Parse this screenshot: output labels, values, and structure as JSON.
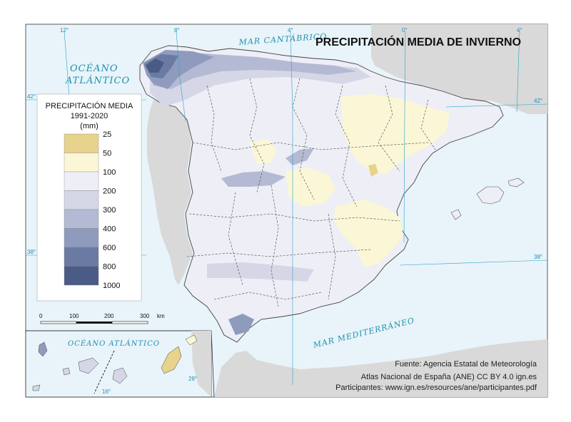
{
  "title": "PRECIPITACIÓN MEDIA DE INVIERNO",
  "seas": {
    "cantabrico": "MAR CANTÁBRICO",
    "atlantico_line1": "OCÉANO",
    "atlantico_line2": "ATLÁNTICO",
    "mediterraneo": "MAR MEDITERRÁNEO",
    "canarias_atlantico": "OCÉANO ATLÁNTICO"
  },
  "graticule": {
    "lon_12w": "12°",
    "lon_8w": "8°",
    "lon_4w": "4°",
    "lon_0": "0°",
    "lon_4e": "4°",
    "lat_42_left": "42°",
    "lat_42_right": "42°",
    "lat_38_left": "38°",
    "lat_38_right": "38°",
    "canarias_lat_28": "28°",
    "canarias_lon_16": "16°"
  },
  "legend": {
    "title_line1": "PRECIPITACIÓN MEDIA",
    "title_line2": "1991-2020",
    "unit": "(mm)",
    "classes": [
      {
        "label": "25",
        "color": "#e8d38c"
      },
      {
        "label": "50",
        "color": "#fbf7d6"
      },
      {
        "label": "100",
        "color": "#eeeef6"
      },
      {
        "label": "200",
        "color": "#d5d7e7"
      },
      {
        "label": "300",
        "color": "#b4bad3"
      },
      {
        "label": "400",
        "color": "#8f9bbd"
      },
      {
        "label": "600",
        "color": "#6a7aa3"
      },
      {
        "label": "800",
        "color": "#4a5b85"
      },
      {
        "label": "1000",
        "color": ""
      }
    ],
    "scale": {
      "t0": "0",
      "t1": "100",
      "t2": "200",
      "t3": "300",
      "unit": "km"
    }
  },
  "source": {
    "line1": "Fuente: Agencia Estatal de Meteorología",
    "line2": "Atlas Nacional de España (ANE) CC BY 4.0 ign.es",
    "line3": "Participantes: www.ign.es/resources/ane/participantes.pdf"
  },
  "colors": {
    "sea": "#e8f4fa",
    "graticule": "#2aa3c8",
    "foreign_land": "#d9d9d9",
    "iberia_base": "#eeeef6",
    "dry": "#fbf7d6",
    "very_dry": "#e8d38c",
    "wet_1": "#d5d7e7",
    "wet_2": "#b4bad3",
    "wet_3": "#8f9bbd",
    "wet_4": "#6a7aa3",
    "wet_5": "#4a5b85"
  }
}
